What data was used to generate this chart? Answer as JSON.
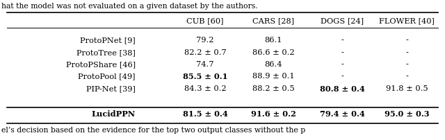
{
  "header": [
    "",
    "CUB [60]",
    "CARS [28]",
    "DOGS [24]",
    "FLOWER [40]"
  ],
  "rows": [
    [
      "ProtoPNet [9]",
      "79.2",
      "86.1",
      "-",
      "-"
    ],
    [
      "ProtoTree [38]",
      "82.2 ± 0.7",
      "86.6 ± 0.2",
      "-",
      "-"
    ],
    [
      "ProtoPShare [46]",
      "74.7",
      "86.4",
      "-",
      "-"
    ],
    [
      "ProtoPool [49]",
      "85.5 ± 0.1",
      "88.9 ± 0.1",
      "-",
      "-"
    ],
    [
      "PIP-Net [39]",
      "84.3 ± 0.2",
      "88.2 ± 0.5",
      "80.8 ± 0.4",
      "91.8 ± 0.5"
    ],
    [
      "LucidPPN",
      "81.5 ± 0.4",
      "91.6 ± 0.2",
      "79.4 ± 0.4",
      "95.0 ± 0.3"
    ]
  ],
  "bold_cells": {
    "3,1": true,
    "4,3": true,
    "5,0": true,
    "5,1": false,
    "5,2": true,
    "5,3": false,
    "5,4": true
  },
  "lucidppn_row": 5,
  "background_color": "#ffffff",
  "top_text": "hat the model was not evaluated on a given dataset by the authors.",
  "bottom_text": "el’s decision based on the evidence for the top two output classes without the p"
}
